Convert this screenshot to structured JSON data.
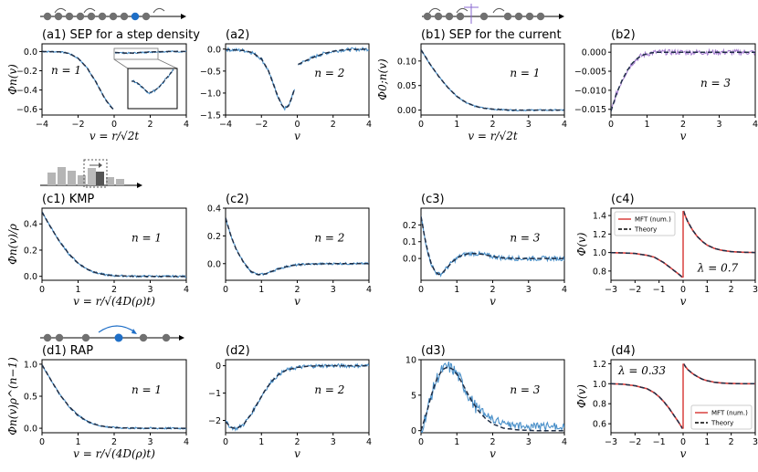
{
  "colors": {
    "sim": "#4a90c9",
    "sim_purple": "#a77fd0",
    "theory": "#1f2e46",
    "mft": "#d9413e",
    "gray": "#707070",
    "blue_dot": "#1f6fc7"
  },
  "chart_data": [
    {
      "id": "a1",
      "type": "line",
      "title": "(a1) SEP for a step density",
      "xlabel": "v = r/√2t",
      "ylabel": "Φn(v)",
      "annotation": "n = 1",
      "xlim": [
        -4,
        4
      ],
      "ylim": [
        -0.66,
        0.08
      ],
      "xticks": [
        -4,
        -2,
        0,
        2,
        4
      ],
      "yticks": [
        0.0,
        -0.2,
        -0.4,
        -0.6
      ],
      "ytick_labels": [
        "0.0",
        "−0.2",
        "−0.4",
        "−0.6"
      ],
      "inset": true,
      "segments": [
        {
          "x": [
            -4,
            -3,
            -2.5,
            -2,
            -1.5,
            -1,
            -0.8,
            -0.6,
            -0.4,
            -0.2,
            -0.05
          ],
          "y": [
            0,
            -0.003,
            -0.02,
            -0.07,
            -0.17,
            -0.32,
            -0.39,
            -0.46,
            -0.52,
            -0.57,
            -0.6
          ]
        },
        {
          "x": [
            0.05,
            0.3,
            0.6,
            1,
            1.5,
            2,
            2.5,
            3,
            4
          ],
          "y": [
            -0.01,
            -0.012,
            -0.016,
            -0.016,
            -0.01,
            -0.005,
            -0.002,
            0,
            0
          ]
        }
      ]
    },
    {
      "id": "a2",
      "type": "line",
      "title": "(a2)",
      "xlabel": "v",
      "ylabel": "",
      "annotation": "n = 2",
      "xlim": [
        -4,
        4
      ],
      "ylim": [
        -1.5,
        0.12
      ],
      "xticks": [
        -4,
        -2,
        0,
        2,
        4
      ],
      "yticks": [
        0.0,
        -0.5,
        -1.0,
        -1.5
      ],
      "ytick_labels": [
        "0.0",
        "−0.5",
        "−1.0",
        "−1.5"
      ],
      "segments": [
        {
          "x": [
            -4,
            -3,
            -2.5,
            -2,
            -1.6,
            -1.2,
            -0.9,
            -0.7,
            -0.5,
            -0.3,
            -0.15
          ],
          "y": [
            -0.01,
            -0.03,
            -0.08,
            -0.22,
            -0.5,
            -0.95,
            -1.25,
            -1.35,
            -1.3,
            -1.1,
            -0.9
          ]
        },
        {
          "x": [
            0.05,
            0.3,
            0.6,
            1,
            1.5,
            2,
            2.5,
            3,
            4
          ],
          "y": [
            -0.35,
            -0.3,
            -0.24,
            -0.17,
            -0.1,
            -0.05,
            -0.02,
            -0.01,
            0
          ]
        }
      ]
    },
    {
      "id": "b1",
      "type": "line",
      "title": "(b1) SEP for the current",
      "xlabel": "v = r/√2t",
      "ylabel": "Φ0;n(v)",
      "annotation": "n = 1",
      "xlim": [
        0,
        4
      ],
      "ylim": [
        -0.01,
        0.135
      ],
      "xticks": [
        0,
        1,
        2,
        3,
        4
      ],
      "yticks": [
        0.0,
        0.05,
        0.1
      ],
      "ytick_labels": [
        "0.00",
        "0.05",
        "0.10"
      ],
      "segments": [
        {
          "x": [
            0,
            0.25,
            0.5,
            0.75,
            1,
            1.25,
            1.5,
            1.75,
            2,
            2.5,
            3,
            4
          ],
          "y": [
            0.123,
            0.094,
            0.068,
            0.046,
            0.028,
            0.016,
            0.008,
            0.004,
            0.002,
            0,
            0,
            0
          ]
        }
      ]
    },
    {
      "id": "b2",
      "type": "line",
      "title": "(b2)",
      "xlabel": "v",
      "ylabel": "",
      "annotation": "n = 3",
      "xlim": [
        0,
        4
      ],
      "ylim": [
        -0.0165,
        0.0022
      ],
      "xticks": [
        0,
        1,
        2,
        3,
        4
      ],
      "yticks": [
        0.0,
        -0.005,
        -0.01,
        -0.015
      ],
      "ytick_labels": [
        "0.000",
        "−0.005",
        "−0.010",
        "−0.015"
      ],
      "purple": true,
      "segments": [
        {
          "x": [
            0,
            0.15,
            0.3,
            0.45,
            0.6,
            0.75,
            0.9,
            1.1,
            1.3,
            1.6,
            2,
            3,
            4
          ],
          "y": [
            -0.0155,
            -0.011,
            -0.0075,
            -0.0048,
            -0.0028,
            -0.0015,
            -0.0007,
            -0.0002,
            0,
            0,
            0,
            0,
            0
          ]
        }
      ]
    },
    {
      "id": "c1",
      "type": "line",
      "title": "(c1) KMP",
      "xlabel": "v = r/√(4D(ρ)t)",
      "ylabel": "Φn(v)/ρ",
      "annotation": "n = 1",
      "xlim": [
        0,
        4
      ],
      "ylim": [
        -0.03,
        0.52
      ],
      "xticks": [
        0,
        1,
        2,
        3,
        4
      ],
      "yticks": [
        0.0,
        0.2,
        0.4
      ],
      "ytick_labels": [
        "0.0",
        "0.2",
        "0.4"
      ],
      "segments": [
        {
          "x": [
            0,
            0.25,
            0.5,
            0.75,
            1,
            1.25,
            1.5,
            1.75,
            2,
            2.5,
            3,
            4
          ],
          "y": [
            0.49,
            0.37,
            0.26,
            0.17,
            0.1,
            0.055,
            0.027,
            0.012,
            0.005,
            0.001,
            0,
            0
          ]
        }
      ]
    },
    {
      "id": "c2",
      "type": "line",
      "title": "(c2)",
      "xlabel": "v",
      "ylabel": "",
      "annotation": "n = 2",
      "xlim": [
        0,
        4
      ],
      "ylim": [
        -0.12,
        0.4
      ],
      "xticks": [
        0,
        1,
        2,
        3,
        4
      ],
      "yticks": [
        0.0,
        0.2,
        0.4
      ],
      "ytick_labels": [
        "0.0",
        "0.2",
        "0.4"
      ],
      "segments": [
        {
          "x": [
            0,
            0.15,
            0.3,
            0.5,
            0.7,
            0.9,
            1.1,
            1.3,
            1.5,
            1.8,
            2.2,
            3,
            4
          ],
          "y": [
            0.33,
            0.2,
            0.1,
            0.01,
            -0.055,
            -0.08,
            -0.075,
            -0.055,
            -0.035,
            -0.015,
            -0.004,
            0,
            0
          ]
        }
      ]
    },
    {
      "id": "c3",
      "type": "line",
      "title": "(c3)",
      "xlabel": "v",
      "ylabel": "",
      "annotation": "n = 3",
      "xlim": [
        0,
        4
      ],
      "ylim": [
        -0.13,
        0.3
      ],
      "xticks": [
        0,
        1,
        2,
        3,
        4
      ],
      "yticks": [
        0.0,
        0.1,
        0.2
      ],
      "ytick_labels": [
        "0.0",
        "0.1",
        "0.2"
      ],
      "segments": [
        {
          "x": [
            0,
            0.1,
            0.2,
            0.3,
            0.4,
            0.5,
            0.6,
            0.75,
            0.9,
            1.1,
            1.3,
            1.5,
            1.7,
            2,
            2.3,
            2.7,
            3.2,
            4
          ],
          "y": [
            0.25,
            0.13,
            0.03,
            -0.04,
            -0.08,
            -0.095,
            -0.085,
            -0.05,
            -0.015,
            0.015,
            0.028,
            0.03,
            0.025,
            0.012,
            0.003,
            0,
            0,
            0
          ]
        }
      ]
    },
    {
      "id": "c4",
      "type": "line",
      "title": "(c4)",
      "xlabel": "v",
      "ylabel": "Φ(v)",
      "annotation": "λ = 0.7",
      "xlim": [
        -3,
        3
      ],
      "ylim": [
        0.7,
        1.48
      ],
      "xticks": [
        -3,
        -2,
        -1,
        0,
        1,
        2,
        3
      ],
      "yticks": [
        0.8,
        1.0,
        1.2,
        1.4
      ],
      "ytick_labels": [
        "0.8",
        "1.0",
        "1.2",
        "1.4"
      ],
      "legend": [
        "MFT (num.)",
        "Theory"
      ],
      "legend_pos": "top-left",
      "segments": [
        {
          "x": [
            -3,
            -2.5,
            -2,
            -1.5,
            -1.2,
            -1,
            -0.8,
            -0.6,
            -0.4,
            -0.2,
            -0.02
          ],
          "y": [
            0.999,
            0.996,
            0.99,
            0.97,
            0.95,
            0.92,
            0.89,
            0.85,
            0.81,
            0.77,
            0.73
          ]
        },
        {
          "x": [
            0.02,
            0.1,
            0.2,
            0.4,
            0.6,
            0.8,
            1,
            1.3,
            1.6,
            2,
            2.5,
            3
          ],
          "y": [
            1.45,
            1.39,
            1.33,
            1.24,
            1.17,
            1.12,
            1.08,
            1.045,
            1.025,
            1.01,
            1.003,
            1.0
          ]
        }
      ]
    },
    {
      "id": "d1",
      "type": "line",
      "title": "(d1) RAP",
      "xlabel": "v = r/√(4D(ρ)t)",
      "ylabel": "Φn(v)ρ^(n−1)",
      "annotation": "n = 1",
      "xlim": [
        0,
        4
      ],
      "ylim": [
        -0.07,
        1.07
      ],
      "xticks": [
        0,
        1,
        2,
        3,
        4
      ],
      "yticks": [
        0.0,
        0.5,
        1.0
      ],
      "ytick_labels": [
        "0.0",
        "0.5",
        "1.0"
      ],
      "segments": [
        {
          "x": [
            0,
            0.25,
            0.5,
            0.75,
            1,
            1.25,
            1.5,
            1.75,
            2,
            2.5,
            3,
            4
          ],
          "y": [
            0.99,
            0.75,
            0.52,
            0.34,
            0.2,
            0.11,
            0.055,
            0.025,
            0.01,
            0.002,
            0,
            0
          ]
        }
      ]
    },
    {
      "id": "d2",
      "type": "line",
      "title": "(d2)",
      "xlabel": "v",
      "ylabel": "",
      "annotation": "n = 2",
      "xlim": [
        0,
        4
      ],
      "ylim": [
        -2.45,
        0.22
      ],
      "xticks": [
        0,
        1,
        2,
        3,
        4
      ],
      "yticks": [
        0,
        -1,
        -2
      ],
      "ytick_labels": [
        "0",
        "−1",
        "−2"
      ],
      "segments": [
        {
          "x": [
            0,
            0.15,
            0.3,
            0.5,
            0.7,
            0.9,
            1.1,
            1.3,
            1.5,
            1.7,
            2,
            2.3,
            2.7,
            3.2,
            4
          ],
          "y": [
            -2.05,
            -2.25,
            -2.3,
            -2.15,
            -1.8,
            -1.35,
            -0.9,
            -0.55,
            -0.3,
            -0.16,
            -0.06,
            -0.02,
            0,
            0,
            0
          ]
        }
      ]
    },
    {
      "id": "d3",
      "type": "line",
      "title": "(d3)",
      "xlabel": "v",
      "ylabel": "",
      "annotation": "n = 3",
      "xlim": [
        0,
        4
      ],
      "ylim": [
        -0.3,
        10
      ],
      "xticks": [
        0,
        1,
        2,
        3,
        4
      ],
      "yticks": [
        0,
        5,
        10
      ],
      "ytick_labels": [
        "0",
        "5",
        "10"
      ],
      "segments": [
        {
          "x": [
            0,
            0.15,
            0.3,
            0.45,
            0.6,
            0.75,
            0.9,
            1.05,
            1.2,
            1.4,
            1.6,
            1.8,
            2,
            2.3,
            2.7,
            3.2,
            4
          ],
          "y": [
            0,
            2.4,
            5.2,
            7.4,
            8.6,
            9.0,
            8.6,
            7.6,
            6.2,
            4.3,
            2.8,
            1.7,
            0.95,
            0.35,
            0.1,
            0,
            0
          ]
        }
      ]
    },
    {
      "id": "d4",
      "type": "line",
      "title": "(d4)",
      "xlabel": "v",
      "ylabel": "Φ(v)",
      "annotation": "λ = 0.33",
      "xlim": [
        -3,
        3
      ],
      "ylim": [
        0.51,
        1.24
      ],
      "xticks": [
        -3,
        -2,
        -1,
        0,
        1,
        2,
        3
      ],
      "yticks": [
        0.6,
        0.8,
        1.0,
        1.2
      ],
      "ytick_labels": [
        "0.6",
        "0.8",
        "1.0",
        "1.2"
      ],
      "legend": [
        "MFT (num.)",
        "Theory"
      ],
      "legend_pos": "bottom-right",
      "segments": [
        {
          "x": [
            -3,
            -2.5,
            -2,
            -1.5,
            -1.2,
            -1,
            -0.8,
            -0.6,
            -0.4,
            -0.2,
            -0.02
          ],
          "y": [
            1.0,
            0.995,
            0.98,
            0.95,
            0.91,
            0.87,
            0.82,
            0.76,
            0.69,
            0.62,
            0.55
          ]
        },
        {
          "x": [
            0.02,
            0.1,
            0.2,
            0.4,
            0.6,
            0.8,
            1,
            1.3,
            1.6,
            2,
            2.5,
            3
          ],
          "y": [
            1.2,
            1.17,
            1.14,
            1.1,
            1.07,
            1.045,
            1.03,
            1.015,
            1.007,
            1.002,
            1.0,
            1.0
          ]
        }
      ]
    }
  ]
}
